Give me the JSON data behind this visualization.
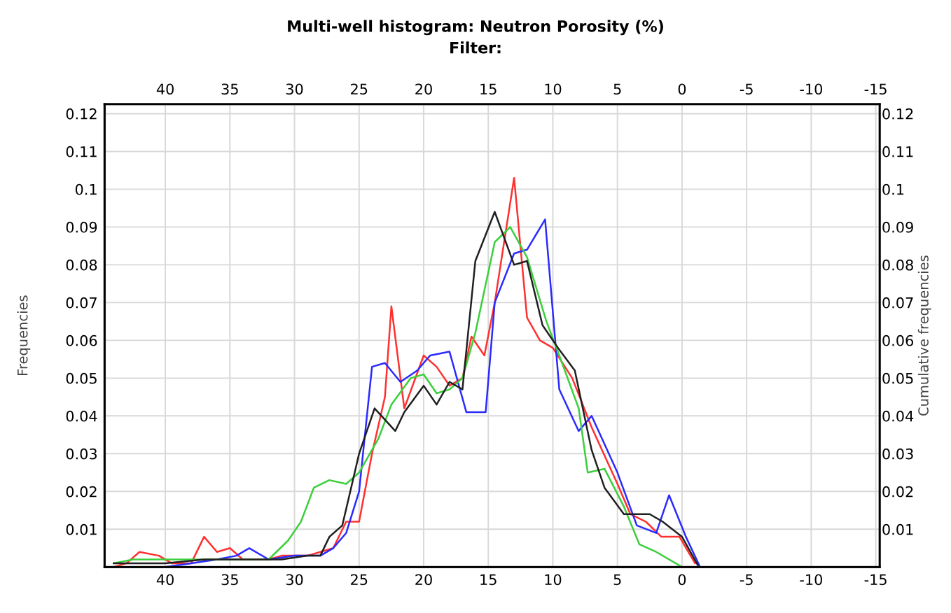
{
  "chart_data": {
    "type": "line",
    "title": "Multi-well histogram: Neutron Porosity (%)",
    "subtitle": "Filter:",
    "ylabel": "Frequencies",
    "y2label": "Cumulative frequencies",
    "xlim": [
      44.7,
      -15.3
    ],
    "xticks": [
      40,
      35,
      30,
      25,
      20,
      15,
      10,
      5,
      0,
      -5,
      -10,
      -15
    ],
    "x2lim": [
      44.7,
      -15.3
    ],
    "x2ticks": [
      40,
      35,
      30,
      25,
      20,
      15,
      10,
      5,
      0,
      -5,
      -10,
      -15
    ],
    "ylim": [
      0,
      0.1225
    ],
    "yticks": [
      0.01,
      0.02,
      0.03,
      0.04,
      0.05,
      0.06,
      0.07,
      0.08,
      0.09,
      0.1,
      0.11,
      0.12
    ],
    "y2lim": [
      0,
      0.1225
    ],
    "y2ticks": [
      0.01,
      0.02,
      0.03,
      0.04,
      0.05,
      0.06,
      0.07,
      0.08,
      0.09,
      0.1,
      0.11,
      0.12
    ],
    "grid": true,
    "marker": "none",
    "line_style": "solid",
    "series": [
      {
        "color": "#ff3030",
        "x": [
          44,
          43,
          42,
          40.5,
          39.5,
          38,
          37,
          36,
          35,
          34,
          33,
          32,
          31,
          30,
          29,
          28,
          27,
          26,
          25,
          24,
          23,
          22.5,
          21.5,
          20,
          19,
          18,
          17,
          16.3,
          15.3,
          14.5,
          13,
          12,
          11,
          10,
          8.5,
          7,
          5,
          4,
          2.8,
          1.6,
          0.2,
          -1
        ],
        "values": [
          0,
          0.001,
          0.004,
          0.003,
          0.001,
          0.001,
          0.008,
          0.004,
          0.005,
          0.002,
          0.002,
          0.002,
          0.003,
          0.003,
          0.003,
          0.004,
          0.005,
          0.012,
          0.012,
          0.03,
          0.045,
          0.069,
          0.042,
          0.056,
          0.053,
          0.048,
          0.05,
          0.061,
          0.056,
          0.07,
          0.103,
          0.066,
          0.06,
          0.058,
          0.05,
          0.037,
          0.022,
          0.014,
          0.012,
          0.008,
          0.008,
          0.001
        ]
      },
      {
        "color": "#2a2aff",
        "x": [
          44,
          40,
          38,
          36,
          34.5,
          33.5,
          32,
          30,
          28,
          27,
          26,
          25,
          24,
          23,
          21.8,
          20.5,
          19.5,
          18,
          16.7,
          15.2,
          14.5,
          13,
          12,
          10.6,
          9.5,
          8,
          7,
          5,
          3.5,
          2,
          1,
          -0.3,
          -1.4
        ],
        "values": [
          0,
          0,
          0.001,
          0.002,
          0.003,
          0.005,
          0.002,
          0.003,
          0.003,
          0.005,
          0.009,
          0.02,
          0.053,
          0.054,
          0.049,
          0.052,
          0.056,
          0.057,
          0.041,
          0.041,
          0.07,
          0.083,
          0.084,
          0.092,
          0.047,
          0.036,
          0.04,
          0.025,
          0.011,
          0.009,
          0.019,
          0.008,
          0
        ]
      },
      {
        "color": "#3ccf3c",
        "x": [
          44,
          42.5,
          40,
          37,
          34,
          32,
          30.5,
          29.5,
          28.5,
          27.3,
          26,
          25,
          23.5,
          22.5,
          21,
          20,
          19,
          18,
          17,
          16,
          14.5,
          13.3,
          12,
          10.5,
          9.5,
          8,
          7.3,
          6,
          4.5,
          3.3,
          2,
          0
        ],
        "values": [
          0.001,
          0.002,
          0.002,
          0.002,
          0.002,
          0.002,
          0.007,
          0.012,
          0.021,
          0.023,
          0.022,
          0.025,
          0.034,
          0.043,
          0.05,
          0.051,
          0.046,
          0.047,
          0.05,
          0.062,
          0.086,
          0.09,
          0.082,
          0.065,
          0.056,
          0.042,
          0.025,
          0.026,
          0.016,
          0.006,
          0.004,
          0
        ]
      },
      {
        "color": "#202020",
        "x": [
          44,
          42,
          40,
          37,
          35,
          33,
          31,
          29,
          28,
          27.3,
          26.3,
          25,
          23.8,
          22.2,
          21.5,
          20,
          19,
          18,
          17,
          16,
          14.5,
          13,
          12,
          10.8,
          9.6,
          8.3,
          7,
          6,
          4.5,
          3.5,
          2.5,
          1.5,
          0,
          -1.3
        ],
        "values": [
          0.001,
          0.001,
          0.001,
          0.002,
          0.002,
          0.002,
          0.002,
          0.003,
          0.003,
          0.008,
          0.011,
          0.03,
          0.042,
          0.036,
          0.041,
          0.048,
          0.043,
          0.049,
          0.047,
          0.081,
          0.094,
          0.08,
          0.081,
          0.064,
          0.058,
          0.052,
          0.031,
          0.021,
          0.014,
          0.014,
          0.014,
          0.012,
          0.008,
          0
        ]
      }
    ]
  }
}
